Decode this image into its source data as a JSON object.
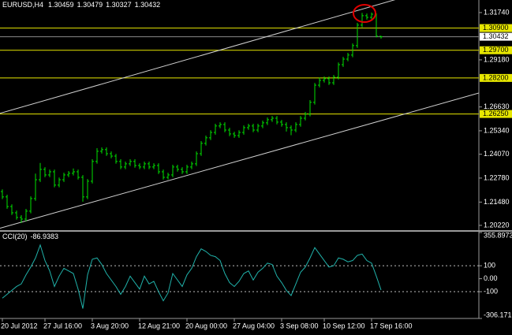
{
  "chart_data": [
    {
      "type": "ohlc",
      "title": "EURUSD,H4",
      "categories": [
        "20 Jul 2012",
        null,
        null,
        null,
        null,
        null,
        null,
        null,
        null,
        "27 Jul 16:00",
        null,
        null,
        null,
        null,
        null,
        null,
        null,
        null,
        null,
        "3 Aug 20:00",
        null,
        null,
        null,
        null,
        null,
        null,
        null,
        null,
        null,
        "12 Aug 21:00",
        null,
        null,
        null,
        null,
        null,
        null,
        null,
        null,
        null,
        "20 Aug 00:00",
        null,
        null,
        null,
        null,
        null,
        null,
        null,
        null,
        null,
        "27 Aug 04:00",
        null,
        null,
        null,
        null,
        null,
        null,
        null,
        null,
        null,
        "3 Sep 08:00",
        null,
        null,
        null,
        null,
        null,
        null,
        null,
        null,
        "10 Sep 12:00",
        null,
        null,
        null,
        null,
        null,
        null,
        null,
        null,
        null,
        "17 Sep 16:00",
        null,
        null
      ],
      "open": [
        1.2205,
        1.2176,
        1.2124,
        1.209,
        1.2065,
        1.2056,
        1.2099,
        1.2167,
        1.2269,
        1.2325,
        1.2295,
        1.2312,
        1.224,
        1.2269,
        1.2295,
        1.2304,
        1.2312,
        1.2282,
        1.2176,
        1.2261,
        1.2368,
        1.2423,
        1.2432,
        1.241,
        1.2397,
        1.2368,
        1.2338,
        1.2355,
        1.2368,
        1.2346,
        1.2338,
        1.2355,
        1.2338,
        1.2346,
        1.2312,
        1.2282,
        1.2295,
        1.2338,
        1.2325,
        1.2312,
        1.2338,
        1.2355,
        1.241,
        1.2466,
        1.2496,
        1.2525,
        1.256,
        1.2568,
        1.2538,
        1.2517,
        1.2508,
        1.2525,
        1.2551,
        1.256,
        1.2538,
        1.256,
        1.2577,
        1.2594,
        1.2602,
        1.2581,
        1.2568,
        1.2551,
        1.2538,
        1.2568,
        1.2602,
        1.2624,
        1.2688,
        1.2781,
        1.2807,
        1.2816,
        1.2794,
        1.2824,
        1.2892,
        1.2922,
        1.2944,
        1.2995,
        1.3106,
        1.3157,
        1.3148,
        1.3165,
        1.30459
      ],
      "high": [
        1.2217,
        1.2188,
        1.2136,
        1.2102,
        1.2077,
        1.2111,
        1.2179,
        1.2302,
        1.236,
        1.2337,
        1.2324,
        1.2324,
        1.2281,
        1.2307,
        1.2316,
        1.233,
        1.2324,
        1.2294,
        1.2273,
        1.238,
        1.244,
        1.2444,
        1.2444,
        1.2422,
        1.2409,
        1.238,
        1.2367,
        1.238,
        1.238,
        1.2358,
        1.2367,
        1.2367,
        1.2358,
        1.2358,
        1.2324,
        1.2307,
        1.235,
        1.235,
        1.2337,
        1.235,
        1.2367,
        1.2422,
        1.2478,
        1.2508,
        1.2537,
        1.2572,
        1.258,
        1.258,
        1.255,
        1.2529,
        1.2537,
        1.2563,
        1.2572,
        1.2572,
        1.2572,
        1.2589,
        1.2606,
        1.2614,
        1.2614,
        1.2593,
        1.258,
        1.2563,
        1.258,
        1.2614,
        1.2636,
        1.27,
        1.2793,
        1.2822,
        1.2828,
        1.2828,
        1.2836,
        1.2904,
        1.2934,
        1.2956,
        1.3007,
        1.3118,
        1.3172,
        1.3169,
        1.3174,
        1.317,
        1.30479
      ],
      "low": [
        1.2164,
        1.2112,
        1.2078,
        1.2053,
        1.2035,
        1.2044,
        1.2087,
        1.2155,
        1.2257,
        1.2283,
        1.2283,
        1.2228,
        1.2228,
        1.2257,
        1.2283,
        1.2292,
        1.227,
        1.215,
        1.2164,
        1.2249,
        1.2356,
        1.2411,
        1.2398,
        1.2385,
        1.2356,
        1.2326,
        1.2326,
        1.2343,
        1.2334,
        1.2326,
        1.2326,
        1.2326,
        1.2326,
        1.23,
        1.227,
        1.227,
        1.2283,
        1.2313,
        1.23,
        1.23,
        1.2326,
        1.2343,
        1.2398,
        1.2454,
        1.2484,
        1.2513,
        1.2548,
        1.2526,
        1.2505,
        1.2496,
        1.2496,
        1.2513,
        1.2539,
        1.2526,
        1.2526,
        1.2548,
        1.2565,
        1.2582,
        1.2569,
        1.2556,
        1.253,
        1.251,
        1.2526,
        1.2556,
        1.259,
        1.2612,
        1.2676,
        1.2769,
        1.2795,
        1.2782,
        1.2782,
        1.2812,
        1.288,
        1.291,
        1.2932,
        1.2983,
        1.3094,
        1.3136,
        1.3136,
        1.304,
        1.30327
      ],
      "close": [
        1.2176,
        1.2124,
        1.209,
        1.2065,
        1.2056,
        1.2099,
        1.2167,
        1.2269,
        1.2325,
        1.2295,
        1.2312,
        1.224,
        1.2269,
        1.2295,
        1.2304,
        1.2312,
        1.2282,
        1.2176,
        1.2261,
        1.2368,
        1.2423,
        1.2432,
        1.241,
        1.2397,
        1.2368,
        1.2338,
        1.2355,
        1.2368,
        1.2346,
        1.2338,
        1.2355,
        1.2338,
        1.2346,
        1.2312,
        1.2282,
        1.2295,
        1.2338,
        1.2325,
        1.2312,
        1.2338,
        1.2355,
        1.241,
        1.2466,
        1.2496,
        1.2525,
        1.256,
        1.2568,
        1.2538,
        1.2517,
        1.2508,
        1.2525,
        1.2551,
        1.256,
        1.2538,
        1.256,
        1.2577,
        1.2594,
        1.2602,
        1.2581,
        1.2568,
        1.2551,
        1.2538,
        1.2568,
        1.2602,
        1.2624,
        1.2688,
        1.2781,
        1.2807,
        1.2816,
        1.2794,
        1.2824,
        1.2892,
        1.2922,
        1.2944,
        1.2995,
        1.3106,
        1.3157,
        1.3148,
        1.3165,
        1.3046,
        1.30432
      ],
      "color": "#00e000",
      "ylim": [
        1.1996,
        1.3242
      ],
      "yticks": [
        {
          "value": 1.3174,
          "label": "1.31740"
        },
        {
          "value": 1.2918,
          "label": "1.29180"
        },
        {
          "value": 1.2663,
          "label": "1.26630"
        },
        {
          "value": 1.2534,
          "label": "1.25340"
        },
        {
          "value": 1.2407,
          "label": "1.24070"
        },
        {
          "value": 1.2278,
          "label": "1.22780"
        },
        {
          "value": 1.2148,
          "label": "1.21480"
        },
        {
          "value": 1.2022,
          "label": "1.20220"
        }
      ],
      "levels": [
        {
          "value": 1.309,
          "label": "1.30900"
        },
        {
          "value": 1.297,
          "label": "1.29700"
        },
        {
          "value": 1.282,
          "label": "1.28200"
        },
        {
          "value": 1.2625,
          "label": "1.26250"
        }
      ],
      "level_color": "#e6e600",
      "trendlines": [
        {
          "x": [
            0,
            75
          ],
          "y": [
            1.2632,
            1.3185
          ]
        },
        {
          "x": [
            4,
            80
          ],
          "y": [
            1.2039,
            1.2589
          ]
        }
      ],
      "trendline_color": "#d0d0d0"
    },
    {
      "type": "line",
      "series": [
        {
          "name": "CCI(20)",
          "color": "#20b2aa",
          "values": [
            -150,
            -120,
            -90,
            -60,
            -40,
            30,
            90,
            160,
            260,
            140,
            60,
            -60,
            20,
            80,
            60,
            40,
            -80,
            -230,
            30,
            150,
            160,
            110,
            40,
            -10,
            -60,
            -120,
            -60,
            20,
            -30,
            -80,
            20,
            -40,
            -20,
            -100,
            -170,
            -110,
            40,
            -10,
            -60,
            30,
            80,
            170,
            230,
            210,
            180,
            170,
            140,
            40,
            -30,
            -60,
            -20,
            40,
            60,
            -10,
            50,
            80,
            120,
            110,
            20,
            -30,
            -90,
            -130,
            -40,
            50,
            90,
            160,
            240,
            190,
            140,
            90,
            100,
            160,
            150,
            130,
            140,
            180,
            190,
            140,
            120,
            20,
            -86.9383
          ]
        }
      ],
      "ylim": [
        -306.171,
        355.8973
      ],
      "yticks": [
        355.8973,
        100,
        {
          "value": 0,
          "label": "0.00"
        },
        -100,
        -306.171
      ],
      "levels": [
        100,
        -100
      ]
    }
  ]
}
